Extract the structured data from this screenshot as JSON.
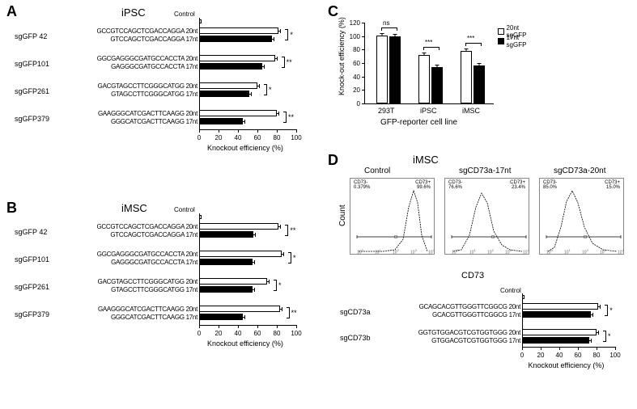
{
  "panelA": {
    "label": "A",
    "title": "iPSC",
    "control_label": "Control",
    "groups": [
      {
        "name": "sgGFP 42",
        "seq20": "GCCGTCCAGCTCGACCAGGA 20nt",
        "seq17": "GTCCAGCTCGACCAGGA 17nt",
        "val20": 82,
        "val17": 75,
        "sig": "*"
      },
      {
        "name": "sgGFP101",
        "seq20": "GGCGAGGGCGATGCCACCTA 20nt",
        "seq17": "GAGGGCGATGCCACCTA 17nt",
        "val20": 78,
        "val17": 65,
        "sig": "**"
      },
      {
        "name": "sgGFP261",
        "seq20": "GACGTAGCCTTCGGGCATGG 20nt",
        "seq17": "GTAGCCTTCGGGCATGG 17nt",
        "val20": 60,
        "val17": 52,
        "sig": "*"
      },
      {
        "name": "sgGFP379",
        "seq20": "GAAGGGCATCGACTTCAAGG 20nt",
        "seq17": "GGGCATCGACTTCAAGG 17nt",
        "val20": 80,
        "val17": 45,
        "sig": "**"
      }
    ],
    "axis_label": "Knockout efficiency (%)",
    "ticks": [
      0,
      20,
      40,
      60,
      80,
      100
    ]
  },
  "panelB": {
    "label": "B",
    "title": "iMSC",
    "control_label": "Control",
    "groups": [
      {
        "name": "sgGFP 42",
        "seq20": "GCCGTCCAGCTCGACCAGGA 20nt",
        "seq17": "GTCCAGCTCGACCAGGA 17nt",
        "val20": 82,
        "val17": 56,
        "sig": "**"
      },
      {
        "name": "sgGFP101",
        "seq20": "GGCGAGGGCGATGCCACCTA 20nt",
        "seq17": "GAGGGCGATGCCACCTA 17nt",
        "val20": 85,
        "val17": 55,
        "sig": "*"
      },
      {
        "name": "sgGFP261",
        "seq20": "GACGTAGCCTTCGGGCATGG 20nt",
        "seq17": "GTAGCCTTCGGGCATGG 17nt",
        "val20": 70,
        "val17": 55,
        "sig": "*"
      },
      {
        "name": "sgGFP379",
        "seq20": "GAAGGGCATCGACTTCAAGG 20nt",
        "seq17": "GGGCATCGACTTCAAGG 17nt",
        "val20": 83,
        "val17": 45,
        "sig": "**"
      }
    ],
    "axis_label": "Knockout efficiency (%)",
    "ticks": [
      0,
      20,
      40,
      60,
      80,
      100
    ]
  },
  "panelC": {
    "label": "C",
    "title": "GFP-reporter cell line",
    "y_label": "Knock-out efficiency (%)",
    "legend": [
      {
        "label": "20nt sgGFP",
        "fill": "white"
      },
      {
        "label": "17nt sgGFP",
        "fill": "black"
      }
    ],
    "bars": [
      {
        "name": "293T",
        "val20": 101,
        "val17": 100,
        "sig": "ns"
      },
      {
        "name": "iPSC",
        "val20": 72,
        "val17": 54,
        "sig": "***"
      },
      {
        "name": "iMSC",
        "val20": 78,
        "val17": 56,
        "sig": "***"
      }
    ],
    "yticks": [
      0,
      20,
      40,
      60,
      80,
      100,
      120
    ]
  },
  "panelD": {
    "label": "D",
    "title": "iMSC",
    "flow_panels": [
      {
        "title": "Control",
        "neg": "CD73-\n0.379%",
        "pos": "CD73+\n99.6%"
      },
      {
        "title": "sgCD73a-17nt",
        "neg": "CD73-\n76.6%",
        "pos": "CD73+\n23.4%"
      },
      {
        "title": "sgCD73a-20nt",
        "neg": "CD73-\n85.0%",
        "pos": "CD73+\n15.0%"
      }
    ],
    "y_axis": "Count",
    "x_axis": "CD73",
    "bar_chart": {
      "control_label": "Control",
      "groups": [
        {
          "name": "sgCD73a",
          "seq20": "GCAGCACGTTGGGTTCGGCG 20nt",
          "seq17": "GCACGTTGGGTTCGGCG 17nt",
          "val20": 82,
          "val17": 74,
          "sig": "*"
        },
        {
          "name": "sgCD73b",
          "seq20": "GGTGTGGACGTCGTGGTGGG 20nt",
          "seq17": "GTGGACGTCGTGGTGGG 17nt",
          "val20": 80,
          "val17": 72,
          "sig": "*"
        }
      ],
      "axis_label": "Knockout efficiency (%)",
      "ticks": [
        0,
        20,
        40,
        60,
        80,
        100
      ]
    }
  }
}
